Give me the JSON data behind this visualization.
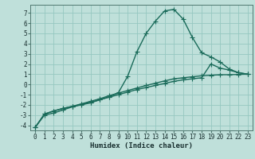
{
  "xlabel": "Humidex (Indice chaleur)",
  "xlim": [
    -0.5,
    23.5
  ],
  "ylim": [
    -4.5,
    7.8
  ],
  "yticks": [
    -4,
    -3,
    -2,
    -1,
    0,
    1,
    2,
    3,
    4,
    5,
    6,
    7
  ],
  "xticks": [
    0,
    1,
    2,
    3,
    4,
    5,
    6,
    7,
    8,
    9,
    10,
    11,
    12,
    13,
    14,
    15,
    16,
    17,
    18,
    19,
    20,
    21,
    22,
    23
  ],
  "bg_color": "#bfe0da",
  "grid_color": "#96c8c0",
  "line_color": "#1a6b5a",
  "line1_x": [
    0,
    1,
    2,
    3,
    4,
    5,
    6,
    7,
    8,
    9,
    10,
    11,
    12,
    13,
    14,
    15,
    16,
    17,
    18,
    19,
    20,
    21,
    22,
    23
  ],
  "line1_y": [
    -4.2,
    -3.0,
    -2.8,
    -2.5,
    -2.2,
    -2.0,
    -1.8,
    -1.5,
    -1.2,
    -0.8,
    0.8,
    3.2,
    5.0,
    6.2,
    7.2,
    7.35,
    6.4,
    4.6,
    3.1,
    2.7,
    2.2,
    1.5,
    1.15,
    1.0
  ],
  "line2_x": [
    0,
    1,
    2,
    3,
    4,
    5,
    6,
    7,
    8,
    9,
    10,
    11,
    12,
    13,
    14,
    15,
    16,
    17,
    18,
    19,
    20,
    21,
    22,
    23
  ],
  "line2_y": [
    -4.2,
    -2.9,
    -2.6,
    -2.35,
    -2.15,
    -1.95,
    -1.75,
    -1.5,
    -1.25,
    -1.0,
    -0.75,
    -0.5,
    -0.3,
    -0.1,
    0.1,
    0.3,
    0.45,
    0.55,
    0.65,
    2.0,
    1.6,
    1.4,
    1.15,
    1.0
  ],
  "line3_x": [
    0,
    1,
    2,
    3,
    4,
    5,
    6,
    7,
    8,
    9,
    10,
    11,
    12,
    13,
    14,
    15,
    16,
    17,
    18,
    19,
    20,
    21,
    22,
    23
  ],
  "line3_y": [
    -4.2,
    -2.9,
    -2.6,
    -2.35,
    -2.15,
    -1.9,
    -1.65,
    -1.4,
    -1.1,
    -0.85,
    -0.6,
    -0.35,
    -0.1,
    0.12,
    0.35,
    0.55,
    0.65,
    0.75,
    0.85,
    0.9,
    0.95,
    0.95,
    0.98,
    1.0
  ],
  "marker": "+",
  "markersize": 4,
  "linewidth": 1.0,
  "xlabel_fontsize": 6.5,
  "tick_fontsize": 5.5
}
